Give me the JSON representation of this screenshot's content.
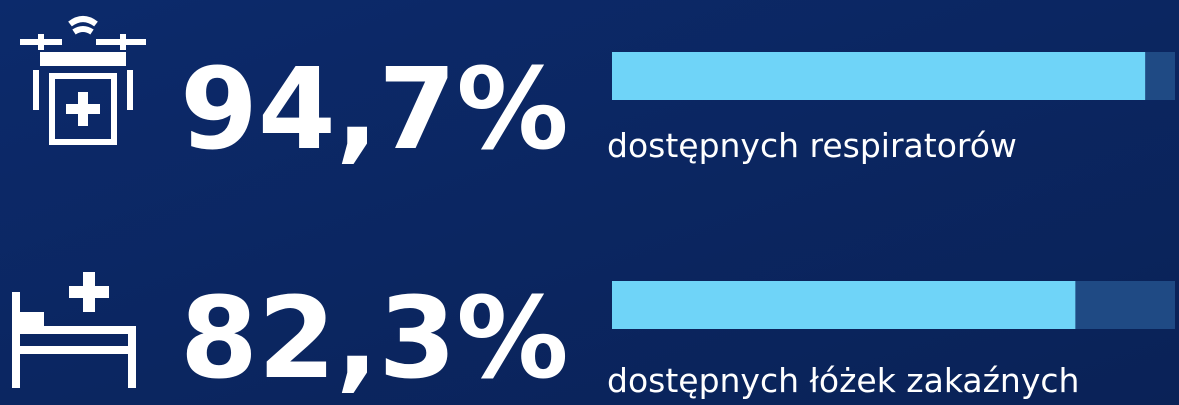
{
  "chart_data": {
    "type": "progress",
    "categories": [
      "dostępnych respiratorów",
      "dostępnych łóżek zakaźnych"
    ],
    "values": [
      94.7,
      82.3
    ],
    "value_labels": [
      "94,7%",
      "82,3%"
    ],
    "xlim": [
      0,
      100
    ],
    "color": "#6fd4f8",
    "track_color": "#1f4a84"
  }
}
